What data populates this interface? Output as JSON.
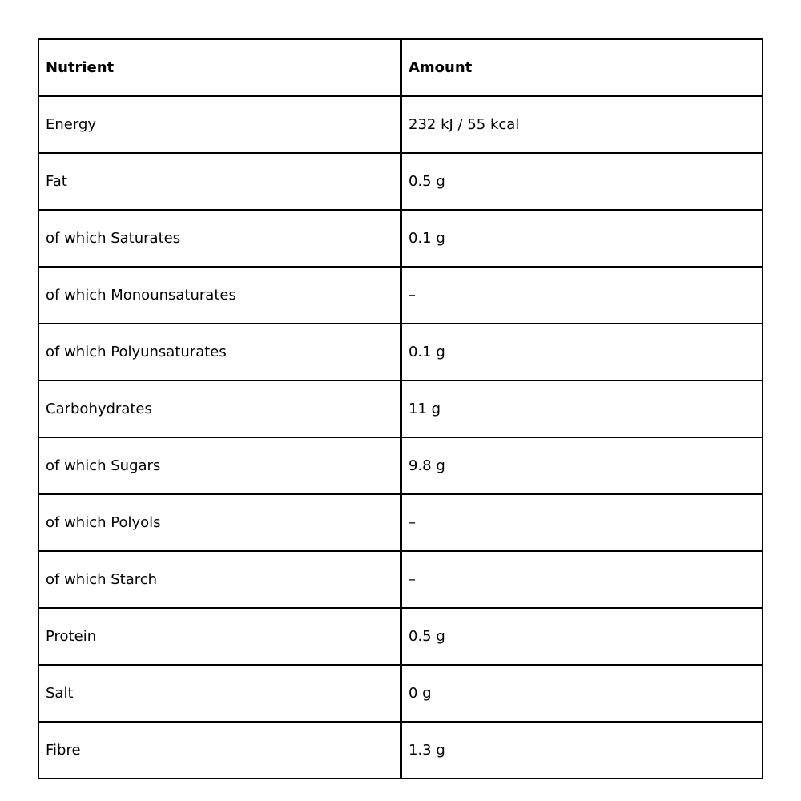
{
  "table": {
    "headers": [
      "Nutrient",
      "Amount"
    ],
    "rows": [
      [
        "Energy",
        "232 kJ / 55 kcal"
      ],
      [
        "Fat",
        "0.5 g"
      ],
      [
        "of which Saturates",
        "0.1 g"
      ],
      [
        "of which Monounsaturates",
        "–"
      ],
      [
        "of which Polyunsaturates",
        "0.1 g"
      ],
      [
        "Carbohydrates",
        "11 g"
      ],
      [
        "of which Sugars",
        "9.8 g"
      ],
      [
        "of which Polyols",
        "–"
      ],
      [
        "of which Starch",
        "–"
      ],
      [
        "Protein",
        "0.5 g"
      ],
      [
        "Salt",
        "0 g"
      ],
      [
        "Fibre",
        "1.3 g"
      ]
    ]
  }
}
